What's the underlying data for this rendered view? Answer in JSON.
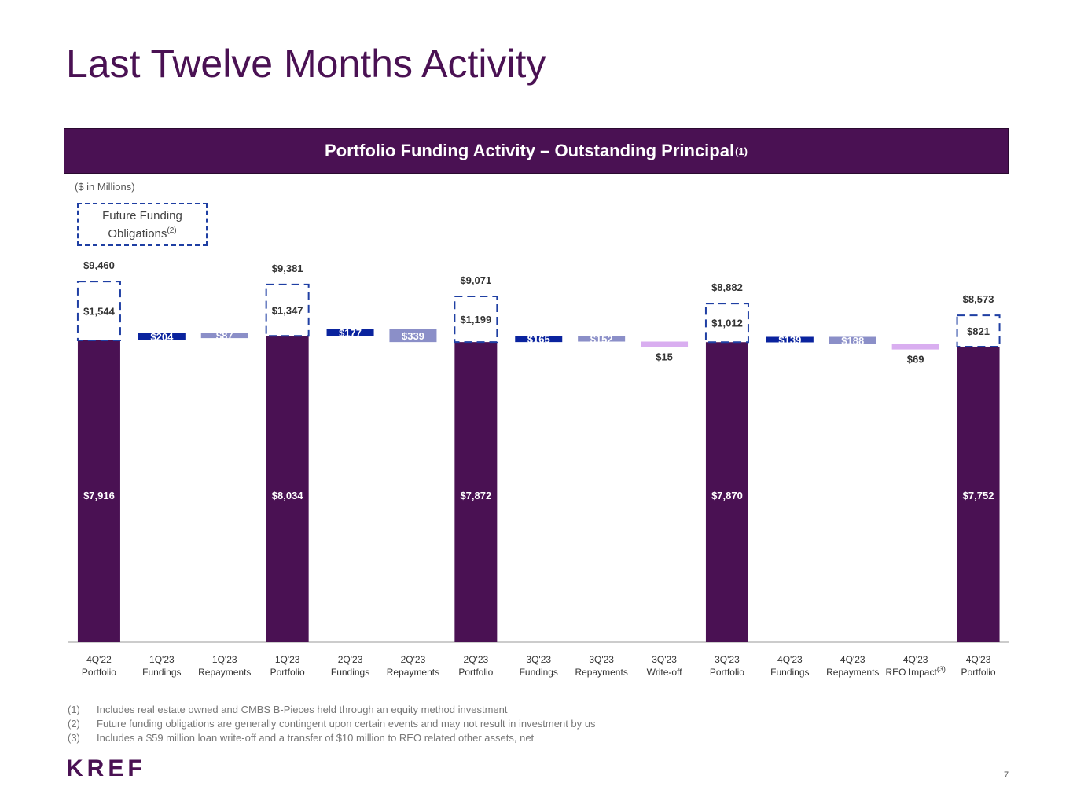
{
  "title": "Last Twelve Months Activity",
  "banner": {
    "text": "Portfolio Funding Activity – Outstanding Principal",
    "sup": "(1)"
  },
  "units": "($ in Millions)",
  "legend": {
    "line1": "Future Funding",
    "line2": "Obligations",
    "sup": "(2)"
  },
  "colors": {
    "portfolio": "#4a1153",
    "fundings": "#0a239e",
    "repayments": "#8b8fc8",
    "writeoff": "#d9aef0",
    "dashed": "#1f3fa3"
  },
  "chart_data": {
    "type": "bar",
    "subtype": "waterfall",
    "title": "Portfolio Funding Activity – Outstanding Principal",
    "ylabel": "$ in Millions",
    "ylim": [
      0,
      10000
    ],
    "categories": [
      {
        "line1": "4Q'22",
        "line2": "Portfolio",
        "sup": ""
      },
      {
        "line1": "1Q'23",
        "line2": "Fundings",
        "sup": ""
      },
      {
        "line1": "1Q'23",
        "line2": "Repayments",
        "sup": ""
      },
      {
        "line1": "1Q'23",
        "line2": "Portfolio",
        "sup": ""
      },
      {
        "line1": "2Q'23",
        "line2": "Fundings",
        "sup": ""
      },
      {
        "line1": "2Q'23",
        "line2": "Repayments",
        "sup": ""
      },
      {
        "line1": "2Q'23",
        "line2": "Portfolio",
        "sup": ""
      },
      {
        "line1": "3Q'23",
        "line2": "Fundings",
        "sup": ""
      },
      {
        "line1": "3Q'23",
        "line2": "Repayments",
        "sup": ""
      },
      {
        "line1": "3Q'23",
        "line2": "Write-off",
        "sup": ""
      },
      {
        "line1": "3Q'23",
        "line2": "Portfolio",
        "sup": ""
      },
      {
        "line1": "4Q'23",
        "line2": "Fundings",
        "sup": ""
      },
      {
        "line1": "4Q'23",
        "line2": "Repayments",
        "sup": ""
      },
      {
        "line1": "4Q'23",
        "line2": "REO Impact",
        "sup": "(3)"
      },
      {
        "line1": "4Q'23",
        "line2": "Portfolio",
        "sup": ""
      }
    ],
    "bars": [
      {
        "kind": "portfolio",
        "outstanding": 7916,
        "future": 1544,
        "total": 9460,
        "label": "$7,916",
        "future_label": "$1,544",
        "total_label": "$9,460"
      },
      {
        "kind": "fundings",
        "value": 204,
        "label": "$204"
      },
      {
        "kind": "repayments",
        "value": 87,
        "label": "$87"
      },
      {
        "kind": "portfolio",
        "outstanding": 8034,
        "future": 1347,
        "total": 9381,
        "label": "$8,034",
        "future_label": "$1,347",
        "total_label": "$9,381"
      },
      {
        "kind": "fundings",
        "value": 177,
        "label": "$177"
      },
      {
        "kind": "repayments",
        "value": 339,
        "label": "$339"
      },
      {
        "kind": "portfolio",
        "outstanding": 7872,
        "future": 1199,
        "total": 9071,
        "label": "$7,872",
        "future_label": "$1,199",
        "total_label": "$9,071"
      },
      {
        "kind": "fundings",
        "value": 165,
        "label": "$165"
      },
      {
        "kind": "repayments",
        "value": 152,
        "label": "$152"
      },
      {
        "kind": "writeoff",
        "value": 15,
        "label": "$15"
      },
      {
        "kind": "portfolio",
        "outstanding": 7870,
        "future": 1012,
        "total": 8882,
        "label": "$7,870",
        "future_label": "$1,012",
        "total_label": "$8,882"
      },
      {
        "kind": "fundings",
        "value": 139,
        "label": "$139"
      },
      {
        "kind": "repayments",
        "value": 188,
        "label": "$188"
      },
      {
        "kind": "writeoff",
        "value": 69,
        "label": "$69"
      },
      {
        "kind": "portfolio",
        "outstanding": 7752,
        "future": 821,
        "total": 8573,
        "label": "$7,752",
        "future_label": "$821",
        "total_label": "$8,573"
      }
    ]
  },
  "footnotes": [
    {
      "num": "(1)",
      "text": "Includes real estate owned and CMBS B-Pieces held through an equity method investment"
    },
    {
      "num": "(2)",
      "text": "Future funding obligations are generally contingent upon certain events and may not result in investment by us"
    },
    {
      "num": "(3)",
      "text": "Includes a $59 million loan write-off and a transfer of $10 million to REO related other assets, net"
    }
  ],
  "logo": "KREF",
  "page_number": "7"
}
